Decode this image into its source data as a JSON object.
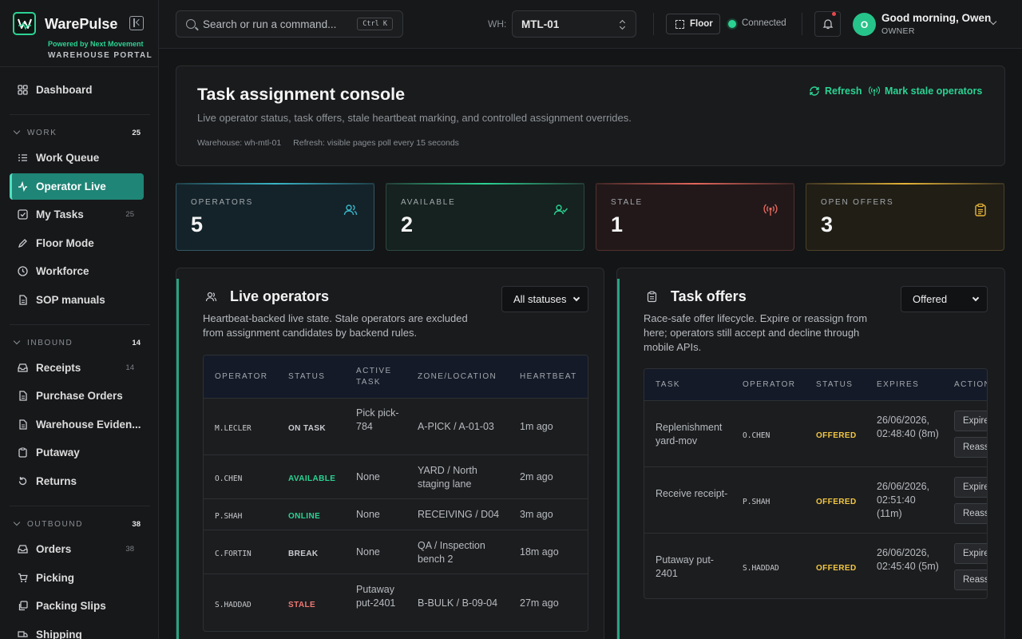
{
  "brand": {
    "name": "WarePulse",
    "powered_by": "Powered by Next Movement",
    "portal": "WAREHOUSE PORTAL"
  },
  "sidebar": {
    "dashboard": "Dashboard",
    "work": {
      "title": "WORK",
      "count": "25",
      "items": [
        {
          "label": "Work Queue",
          "icon": "list-icon"
        },
        {
          "label": "Operator Live",
          "icon": "pulse-icon",
          "active": true
        },
        {
          "label": "My Tasks",
          "icon": "check-square-icon",
          "count": "25"
        },
        {
          "label": "Floor Mode",
          "icon": "pen-icon"
        },
        {
          "label": "Workforce",
          "icon": "clock-icon"
        },
        {
          "label": "SOP manuals",
          "icon": "document-icon"
        }
      ]
    },
    "inbound": {
      "title": "INBOUND",
      "count": "14",
      "items": [
        {
          "label": "Receipts",
          "icon": "inbox-icon",
          "count": "14"
        },
        {
          "label": "Purchase Orders",
          "icon": "document-icon"
        },
        {
          "label": "Warehouse Eviden...",
          "icon": "document-icon"
        },
        {
          "label": "Putaway",
          "icon": "clipboard-icon"
        },
        {
          "label": "Returns",
          "icon": "return-icon"
        }
      ]
    },
    "outbound": {
      "title": "OUTBOUND",
      "count": "38",
      "items": [
        {
          "label": "Orders",
          "icon": "inbox-icon",
          "count": "38"
        },
        {
          "label": "Picking",
          "icon": "cart-icon"
        },
        {
          "label": "Packing Slips",
          "icon": "copy-icon"
        },
        {
          "label": "Shipping",
          "icon": "truck-icon"
        }
      ]
    }
  },
  "topbar": {
    "search_placeholder": "Search or run a command...",
    "shortcut": "Ctrl K",
    "wh_label": "WH:",
    "warehouse": "MTL-01",
    "floor_label": "Floor",
    "connection": "Connected",
    "greeting_prefix": "Good morning, ",
    "user_name": "Owen",
    "role": "OWNER",
    "avatar_initial": "O"
  },
  "header": {
    "title": "Task assignment console",
    "subtitle": "Live operator status, task offers, stale heartbeat marking, and controlled assignment overrides.",
    "warehouse_meta": "Warehouse: wh-mtl-01",
    "refresh_meta": "Refresh: visible pages poll every 15 seconds",
    "refresh_label": "Refresh",
    "mark_stale_label": "Mark stale operators"
  },
  "stats": [
    {
      "label": "OPERATORS",
      "value": "5",
      "icon": "users-icon",
      "color": "#3ab5c8"
    },
    {
      "label": "AVAILABLE",
      "value": "2",
      "icon": "user-check-icon",
      "color": "#2bd393"
    },
    {
      "label": "STALE",
      "value": "1",
      "icon": "antenna-icon",
      "color": "#e5675d"
    },
    {
      "label": "OPEN OFFERS",
      "value": "3",
      "icon": "clipboard-icon",
      "color": "#e5b437"
    }
  ],
  "live_operators": {
    "title": "Live operators",
    "description": "Heartbeat-backed live state. Stale operators are excluded from assignment candidates by backend rules.",
    "filter": "All statuses",
    "columns": [
      "OPERATOR",
      "STATUS",
      "ACTIVE TASK",
      "ZONE/LOCATION",
      "HEARTBEAT"
    ],
    "rows": [
      {
        "operator": "M.LECLER",
        "status": "ON TASK",
        "status_color": "#c9ccd0",
        "task": "Pick pick-784",
        "zone": "A-PICK / A-01-03",
        "heartbeat": "1m ago"
      },
      {
        "operator": "O.CHEN",
        "status": "AVAILABLE",
        "status_color": "#2bd393",
        "task": "None",
        "zone": "YARD / North staging lane",
        "heartbeat": "2m ago"
      },
      {
        "operator": "P.SHAH",
        "status": "ONLINE",
        "status_color": "#2bd393",
        "task": "None",
        "zone": "RECEIVING / D04",
        "heartbeat": "3m ago"
      },
      {
        "operator": "C.FORTIN",
        "status": "BREAK",
        "status_color": "#c9ccd0",
        "task": "None",
        "zone": "QA / Inspection bench 2",
        "heartbeat": "18m ago"
      },
      {
        "operator": "S.HADDAD",
        "status": "STALE",
        "status_color": "#f07873",
        "task": "Putaway put-2401",
        "zone": "B-BULK / B-09-04",
        "heartbeat": "27m ago"
      }
    ]
  },
  "task_offers": {
    "title": "Task offers",
    "description": "Race-safe offer lifecycle. Expire or reassign from here; operators still accept and decline through mobile APIs.",
    "filter": "Offered",
    "columns": [
      "TASK",
      "OPERATOR",
      "STATUS",
      "EXPIRES",
      "ACTIONS"
    ],
    "expire_label": "Expire",
    "reassign_label": "Reassign",
    "rows": [
      {
        "task": "Replenishment yard-mov",
        "operator": "O.CHEN",
        "status": "OFFERED",
        "expires": "26/06/2026, 02:48:40 (8m)"
      },
      {
        "task": "Receive receipt-",
        "operator": "P.SHAH",
        "status": "OFFERED",
        "expires": "26/06/2026, 02:51:40 (11m)"
      },
      {
        "task": "Putaway put-2401",
        "operator": "S.HADDAD",
        "status": "OFFERED",
        "expires": "26/06/2026, 02:45:40 (5m)"
      }
    ],
    "status_color": "#f2c744"
  }
}
